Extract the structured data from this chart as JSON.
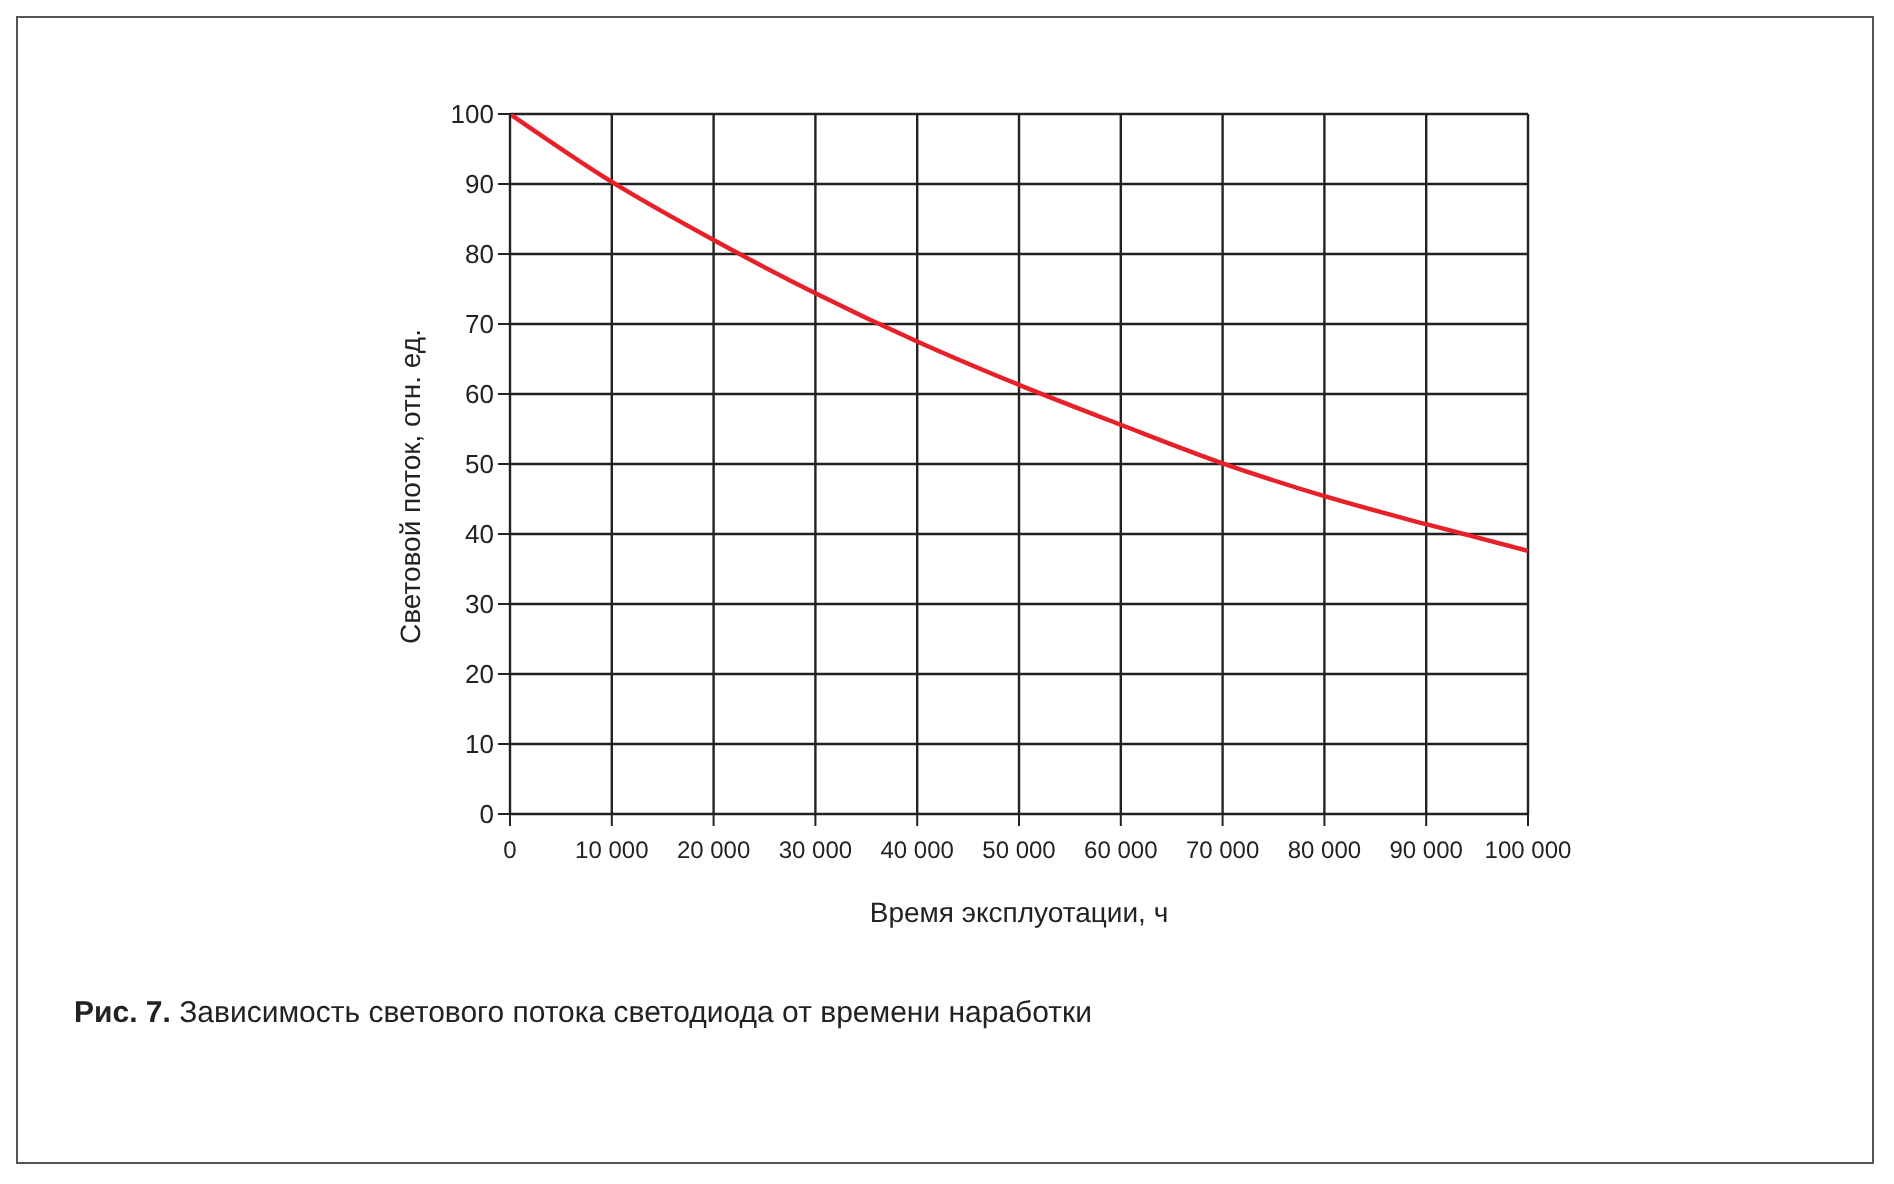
{
  "chart_data": {
    "type": "line",
    "xlabel": "Время эксплуотации, ч",
    "ylabel": "Световой поток, отн. ед.",
    "annotations": [
      "Рис. 7. Зависимость светового потока светодиода от времени наработки"
    ],
    "x": [
      0,
      10000,
      20000,
      30000,
      40000,
      50000,
      60000,
      70000,
      80000,
      90000,
      100000
    ],
    "series": [
      {
        "color": "#e8202a",
        "values": [
          100,
          90.3,
          82.0,
          74.4,
          67.5,
          61.3,
          55.6,
          50.1,
          45.4,
          41.4,
          37.6
        ]
      }
    ],
    "xlim": [
      0,
      100000
    ],
    "xticks": [
      0,
      {
        "value": 10000,
        "label": "10 000"
      },
      {
        "value": 20000,
        "label": "20 000"
      },
      {
        "value": 30000,
        "label": "30 000"
      },
      {
        "value": 40000,
        "label": "40 000"
      },
      {
        "value": 50000,
        "label": "50 000"
      },
      {
        "value": 60000,
        "label": "60 000"
      },
      {
        "value": 70000,
        "label": "70 000"
      },
      {
        "value": 80000,
        "label": "80 000"
      },
      {
        "value": 90000,
        "label": "90 000"
      },
      {
        "value": 100000,
        "label": "100 000"
      }
    ],
    "ylim": [
      0,
      100
    ],
    "yticks": [
      0,
      10,
      20,
      30,
      40,
      50,
      60,
      70,
      80,
      90,
      100
    ],
    "grid": true,
    "legend": false,
    "marker": "none",
    "line_style": "solid"
  }
}
